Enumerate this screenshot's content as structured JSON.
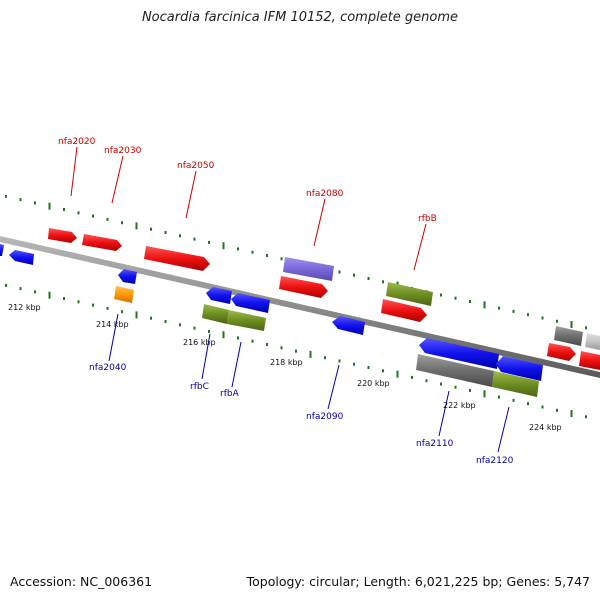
{
  "title": "Nocardia farcinica IFM 10152, complete genome",
  "footer": {
    "accession": "Accession: NC_006361",
    "summary": "Topology: circular; Length: 6,021,225 bp; Genes: 5,747"
  },
  "axis_labels": [
    "212 kbp",
    "214 kbp",
    "216 kbp",
    "218 kbp",
    "220 kbp",
    "222 kbp",
    "224 kbp"
  ],
  "genes_top": [
    "nfa2020",
    "nfa2030",
    "nfa2050",
    "nfa2080",
    "rfbB"
  ],
  "genes_bottom": [
    "nfa2040",
    "rfbC",
    "rfbA",
    "nfa2090",
    "nfa2110",
    "nfa2120"
  ],
  "colors": {
    "forward": "#ee1111",
    "reverse": "#1111ee",
    "green": "#6e8e22",
    "gray": "#6e6e6e",
    "purple": "#7b68d8",
    "orange": "#ff9900",
    "tick": "#1a7a1a",
    "top_label": "#cc0000",
    "bottom_label": "#0000aa"
  }
}
